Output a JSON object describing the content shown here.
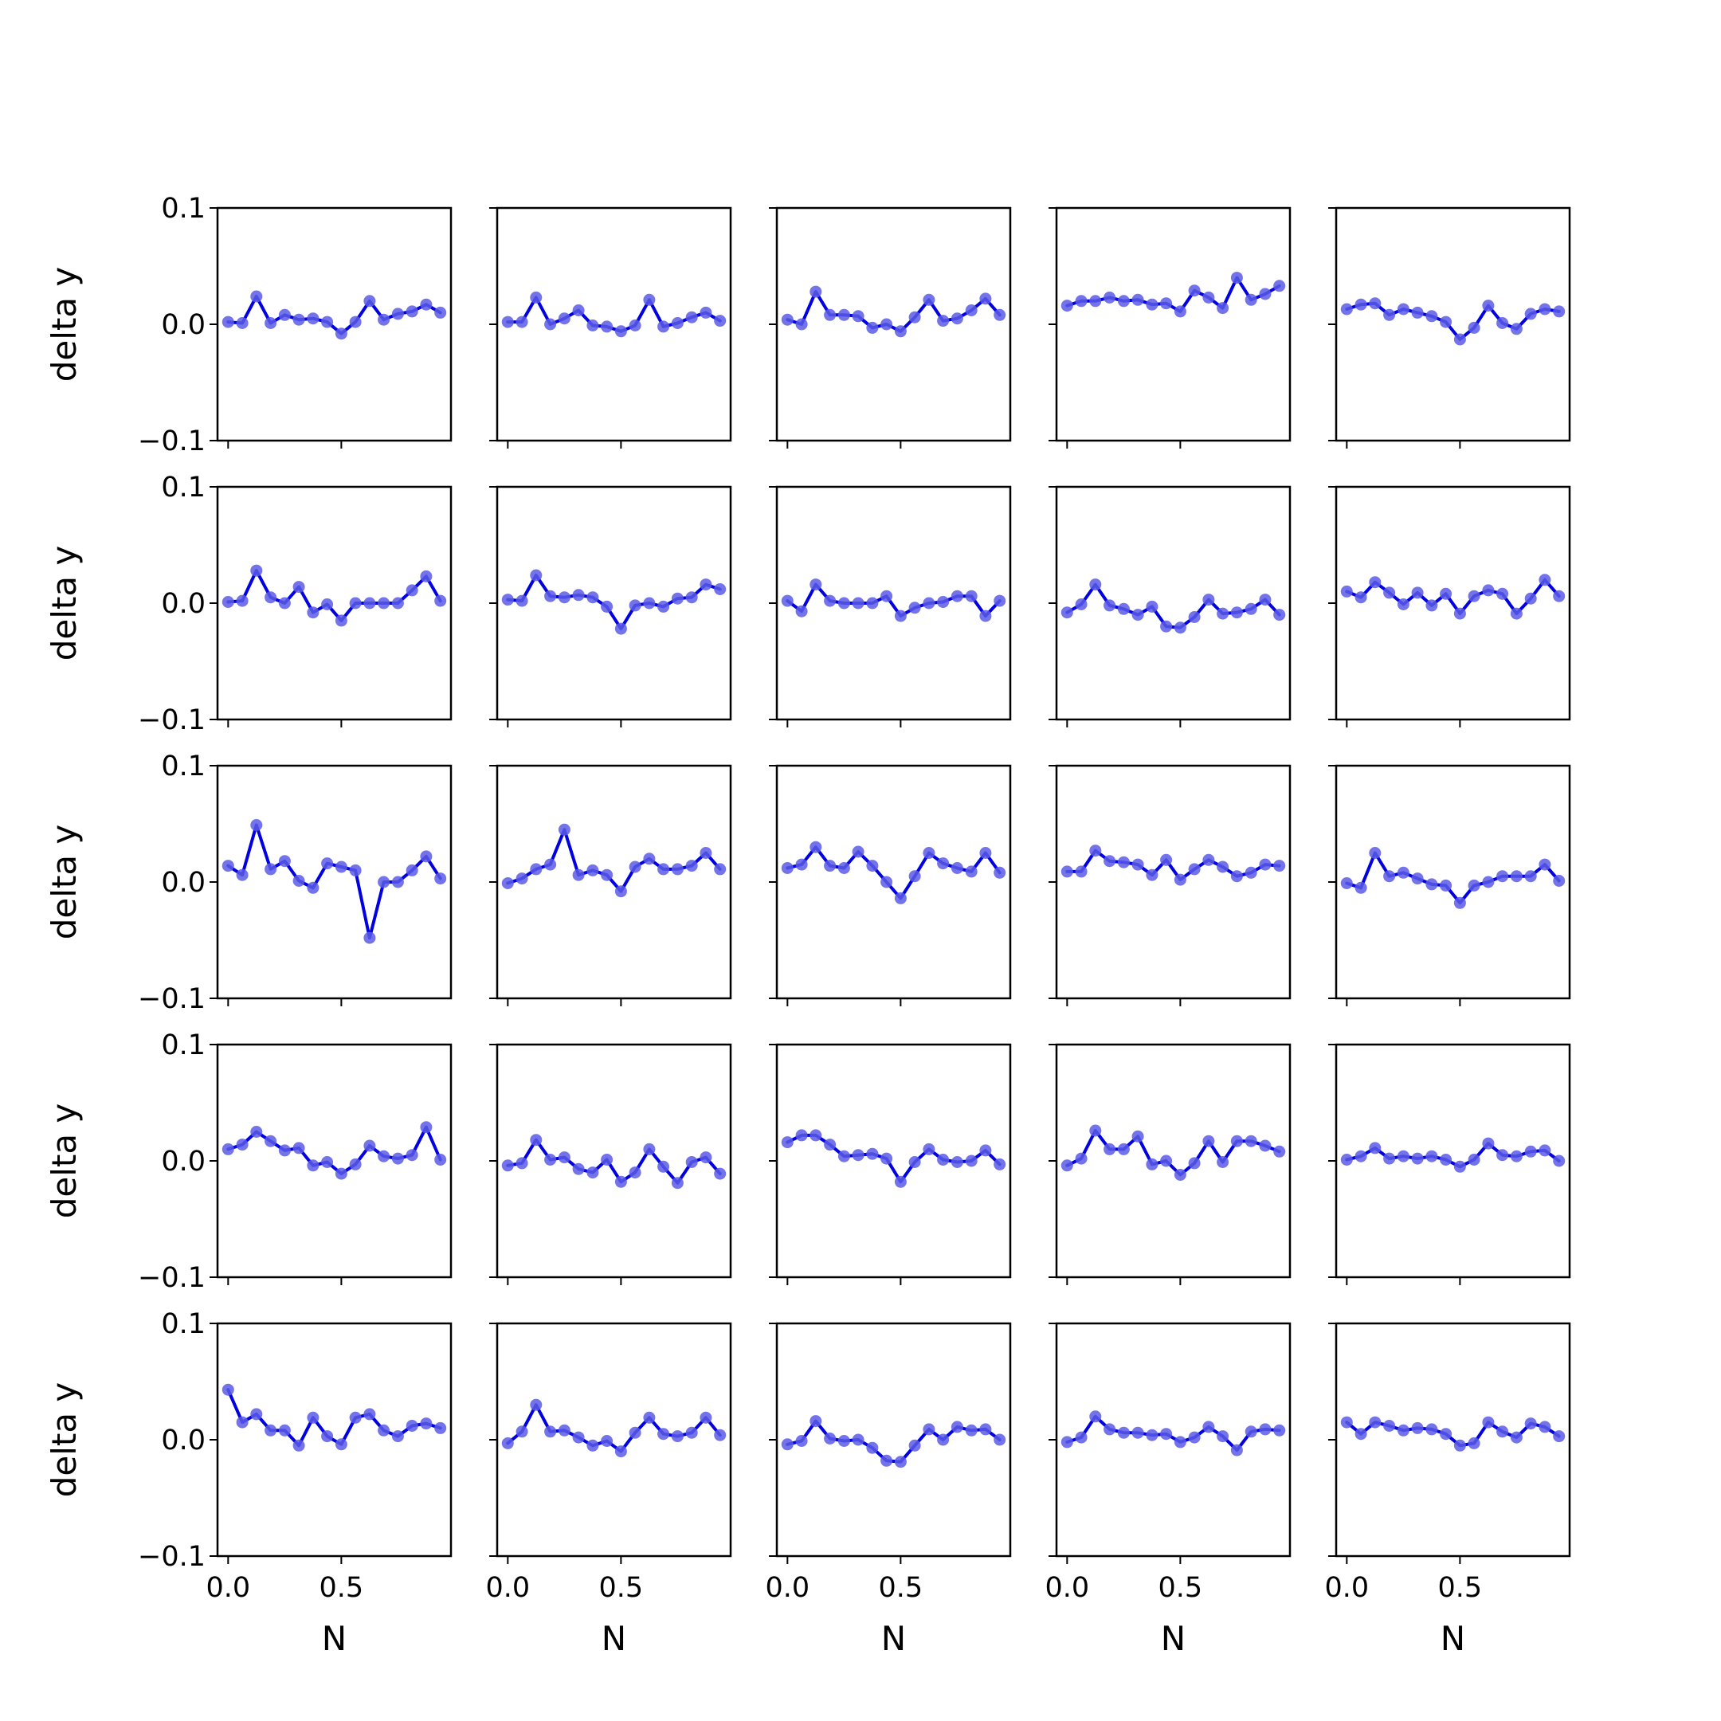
{
  "chart_data": {
    "type": "line",
    "layout": "5x5 grid of small-multiple line plots with markers",
    "xlabel": "N",
    "ylabel": "delta y",
    "ylim": [
      -0.1,
      0.1
    ],
    "xlim": [
      -0.0469,
      0.9844
    ],
    "yticks": [
      -0.1,
      0.0,
      0.1
    ],
    "ytick_labels": [
      "−0.1",
      "0.0",
      "0.1"
    ],
    "xticks": [
      0.0,
      0.5
    ],
    "xtick_labels": [
      "0.0",
      "0.5"
    ],
    "grid": false,
    "x": [
      0.0,
      0.0625,
      0.125,
      0.1875,
      0.25,
      0.3125,
      0.375,
      0.4375,
      0.5,
      0.5625,
      0.625,
      0.6875,
      0.75,
      0.8125,
      0.875,
      0.9375
    ],
    "line_color": "#0000e0",
    "marker_color": "#5a5ae6",
    "panels": [
      {
        "row": 0,
        "col": 0,
        "y": [
          0.002,
          0.001,
          0.024,
          0.001,
          0.008,
          0.004,
          0.005,
          0.002,
          -0.008,
          0.002,
          0.02,
          0.004,
          0.009,
          0.011,
          0.017,
          0.01
        ]
      },
      {
        "row": 0,
        "col": 1,
        "y": [
          0.002,
          0.002,
          0.023,
          0.0,
          0.005,
          0.012,
          -0.001,
          -0.002,
          -0.006,
          -0.001,
          0.021,
          -0.002,
          0.001,
          0.006,
          0.01,
          0.003
        ]
      },
      {
        "row": 0,
        "col": 2,
        "y": [
          0.004,
          0.0,
          0.028,
          0.008,
          0.008,
          0.007,
          -0.003,
          0.0,
          -0.006,
          0.006,
          0.021,
          0.003,
          0.005,
          0.012,
          0.022,
          0.008
        ]
      },
      {
        "row": 0,
        "col": 3,
        "y": [
          0.016,
          0.02,
          0.02,
          0.023,
          0.02,
          0.021,
          0.017,
          0.018,
          0.011,
          0.029,
          0.023,
          0.014,
          0.04,
          0.021,
          0.026,
          0.033
        ]
      },
      {
        "row": 0,
        "col": 4,
        "y": [
          0.013,
          0.017,
          0.018,
          0.008,
          0.013,
          0.01,
          0.007,
          0.002,
          -0.013,
          -0.003,
          0.016,
          0.001,
          -0.004,
          0.009,
          0.013,
          0.011
        ]
      },
      {
        "row": 1,
        "col": 0,
        "y": [
          0.001,
          0.002,
          0.028,
          0.005,
          0.0,
          0.014,
          -0.008,
          -0.001,
          -0.015,
          0.0,
          0.0,
          0.0,
          0.0,
          0.011,
          0.023,
          0.002
        ]
      },
      {
        "row": 1,
        "col": 1,
        "y": [
          0.003,
          0.002,
          0.024,
          0.006,
          0.005,
          0.007,
          0.005,
          -0.003,
          -0.022,
          -0.002,
          0.0,
          -0.003,
          0.004,
          0.005,
          0.016,
          0.012
        ]
      },
      {
        "row": 1,
        "col": 2,
        "y": [
          0.002,
          -0.007,
          0.016,
          0.002,
          0.0,
          0.0,
          0.0,
          0.006,
          -0.011,
          -0.004,
          0.0,
          0.001,
          0.006,
          0.006,
          -0.011,
          0.002
        ]
      },
      {
        "row": 1,
        "col": 3,
        "y": [
          -0.008,
          -0.001,
          0.016,
          -0.002,
          -0.005,
          -0.01,
          -0.003,
          -0.02,
          -0.021,
          -0.012,
          0.003,
          -0.009,
          -0.008,
          -0.005,
          0.003,
          -0.01
        ]
      },
      {
        "row": 1,
        "col": 4,
        "y": [
          0.01,
          0.005,
          0.018,
          0.009,
          -0.001,
          0.009,
          -0.002,
          0.008,
          -0.009,
          0.006,
          0.011,
          0.008,
          -0.009,
          0.004,
          0.02,
          0.006
        ]
      },
      {
        "row": 2,
        "col": 0,
        "y": [
          0.014,
          0.006,
          0.049,
          0.011,
          0.018,
          0.001,
          -0.005,
          0.016,
          0.013,
          0.01,
          -0.048,
          0.0,
          0.0,
          0.01,
          0.022,
          0.003
        ]
      },
      {
        "row": 2,
        "col": 1,
        "y": [
          -0.001,
          0.003,
          0.011,
          0.015,
          0.045,
          0.006,
          0.01,
          0.006,
          -0.008,
          0.013,
          0.02,
          0.011,
          0.011,
          0.014,
          0.025,
          0.011
        ]
      },
      {
        "row": 2,
        "col": 2,
        "y": [
          0.012,
          0.015,
          0.03,
          0.014,
          0.012,
          0.026,
          0.014,
          0.0,
          -0.014,
          0.005,
          0.025,
          0.016,
          0.012,
          0.009,
          0.025,
          0.008
        ]
      },
      {
        "row": 2,
        "col": 3,
        "y": [
          0.009,
          0.009,
          0.027,
          0.018,
          0.017,
          0.015,
          0.006,
          0.019,
          0.002,
          0.011,
          0.019,
          0.013,
          0.005,
          0.008,
          0.015,
          0.014
        ]
      },
      {
        "row": 2,
        "col": 4,
        "y": [
          -0.001,
          -0.005,
          0.025,
          0.005,
          0.008,
          0.003,
          -0.002,
          -0.003,
          -0.018,
          -0.003,
          0.0,
          0.005,
          0.005,
          0.005,
          0.015,
          0.001
        ]
      },
      {
        "row": 3,
        "col": 0,
        "y": [
          0.01,
          0.014,
          0.025,
          0.017,
          0.009,
          0.011,
          -0.004,
          -0.001,
          -0.011,
          -0.003,
          0.013,
          0.004,
          0.002,
          0.005,
          0.029,
          0.001
        ]
      },
      {
        "row": 3,
        "col": 1,
        "y": [
          -0.004,
          -0.002,
          0.018,
          0.001,
          0.003,
          -0.007,
          -0.01,
          0.001,
          -0.018,
          -0.01,
          0.01,
          -0.005,
          -0.019,
          -0.001,
          0.003,
          -0.011
        ]
      },
      {
        "row": 3,
        "col": 2,
        "y": [
          0.016,
          0.022,
          0.022,
          0.014,
          0.004,
          0.005,
          0.006,
          0.002,
          -0.018,
          -0.001,
          0.01,
          0.001,
          -0.001,
          0.0,
          0.009,
          -0.003
        ]
      },
      {
        "row": 3,
        "col": 3,
        "y": [
          -0.004,
          0.002,
          0.026,
          0.01,
          0.01,
          0.021,
          -0.003,
          0.0,
          -0.012,
          -0.002,
          0.017,
          -0.001,
          0.017,
          0.017,
          0.013,
          0.008
        ]
      },
      {
        "row": 3,
        "col": 4,
        "y": [
          0.001,
          0.004,
          0.011,
          0.002,
          0.004,
          0.002,
          0.004,
          0.001,
          -0.005,
          0.001,
          0.015,
          0.005,
          0.004,
          0.008,
          0.009,
          0.0
        ]
      },
      {
        "row": 4,
        "col": 0,
        "y": [
          0.043,
          0.015,
          0.022,
          0.008,
          0.008,
          -0.005,
          0.019,
          0.003,
          -0.004,
          0.019,
          0.022,
          0.008,
          0.003,
          0.012,
          0.014,
          0.01
        ]
      },
      {
        "row": 4,
        "col": 1,
        "y": [
          -0.003,
          0.007,
          0.03,
          0.007,
          0.008,
          0.002,
          -0.005,
          -0.001,
          -0.01,
          0.006,
          0.019,
          0.005,
          0.003,
          0.006,
          0.019,
          0.004
        ]
      },
      {
        "row": 4,
        "col": 2,
        "y": [
          -0.004,
          -0.001,
          0.016,
          0.001,
          -0.001,
          0.0,
          -0.007,
          -0.018,
          -0.019,
          -0.005,
          0.009,
          0.0,
          0.011,
          0.008,
          0.009,
          0.0
        ]
      },
      {
        "row": 4,
        "col": 3,
        "y": [
          -0.002,
          0.002,
          0.02,
          0.009,
          0.006,
          0.006,
          0.004,
          0.005,
          -0.002,
          0.002,
          0.011,
          0.003,
          -0.009,
          0.007,
          0.009,
          0.008
        ]
      },
      {
        "row": 4,
        "col": 4,
        "y": [
          0.015,
          0.005,
          0.015,
          0.012,
          0.008,
          0.01,
          0.009,
          0.005,
          -0.005,
          -0.003,
          0.015,
          0.007,
          0.002,
          0.014,
          0.011,
          0.003
        ]
      }
    ]
  }
}
